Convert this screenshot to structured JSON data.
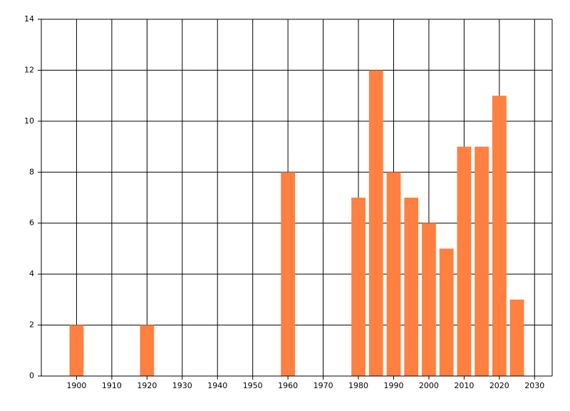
{
  "chart_data": {
    "type": "bar",
    "x": [
      1900,
      1920,
      1960,
      1980,
      1985,
      1990,
      1995,
      2000,
      2005,
      2010,
      2015,
      2020,
      2025
    ],
    "values": [
      2,
      2,
      8,
      7,
      12,
      8,
      7,
      6,
      5,
      9,
      9,
      11,
      3
    ],
    "color": "#ff8040",
    "xlim": [
      1890,
      2035
    ],
    "xticks": [
      1900,
      1910,
      1920,
      1930,
      1940,
      1950,
      1960,
      1970,
      1980,
      1990,
      2000,
      2010,
      2020,
      2030
    ],
    "ylim": [
      0,
      14
    ],
    "yticks": [
      0,
      2,
      4,
      6,
      8,
      10,
      12,
      14
    ],
    "grid": true
  }
}
